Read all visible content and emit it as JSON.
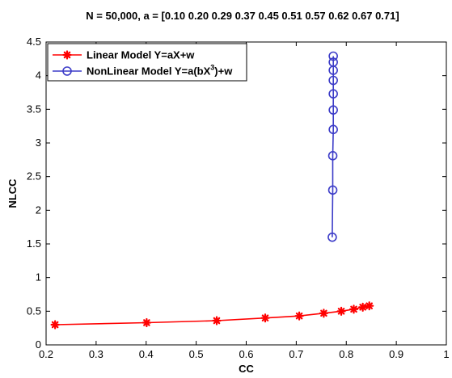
{
  "chart_data": {
    "type": "line",
    "title": "N = 50,000, a = [0.10 0.20 0.29 0.37 0.45 0.51 0.57 0.62 0.67 0.71]",
    "xlabel": "CC",
    "ylabel": "NLCC",
    "xlim": [
      0.2,
      1
    ],
    "ylim": [
      0,
      4.5
    ],
    "x_ticks": [
      "0.2",
      "0.3",
      "0.4",
      "0.5",
      "0.6",
      "0.7",
      "0.8",
      "0.9",
      "1"
    ],
    "y_ticks": [
      "0",
      "0.5",
      "1",
      "1.5",
      "2",
      "2.5",
      "3",
      "3.5",
      "4",
      "4.5"
    ],
    "grid": false,
    "legend_position": "top-left",
    "series": [
      {
        "name": "Linear Model Y=aX+w",
        "color": "#ff0000",
        "marker": "asterisk",
        "x": [
          0.218,
          0.401,
          0.541,
          0.638,
          0.706,
          0.755,
          0.79,
          0.815,
          0.833,
          0.846
        ],
        "y": [
          0.3,
          0.33,
          0.36,
          0.4,
          0.43,
          0.47,
          0.5,
          0.53,
          0.56,
          0.58
        ]
      },
      {
        "name_prefix": "NonLinear Model Y=a(bX",
        "name_sup": "3",
        "name_suffix": ")+w",
        "color": "#3c3cc8",
        "marker": "circle",
        "x": [
          0.772,
          0.773,
          0.773,
          0.774,
          0.774,
          0.774,
          0.774,
          0.774,
          0.774,
          0.774
        ],
        "y": [
          1.6,
          2.3,
          2.81,
          3.2,
          3.49,
          3.73,
          3.93,
          4.08,
          4.2,
          4.29
        ]
      }
    ]
  }
}
